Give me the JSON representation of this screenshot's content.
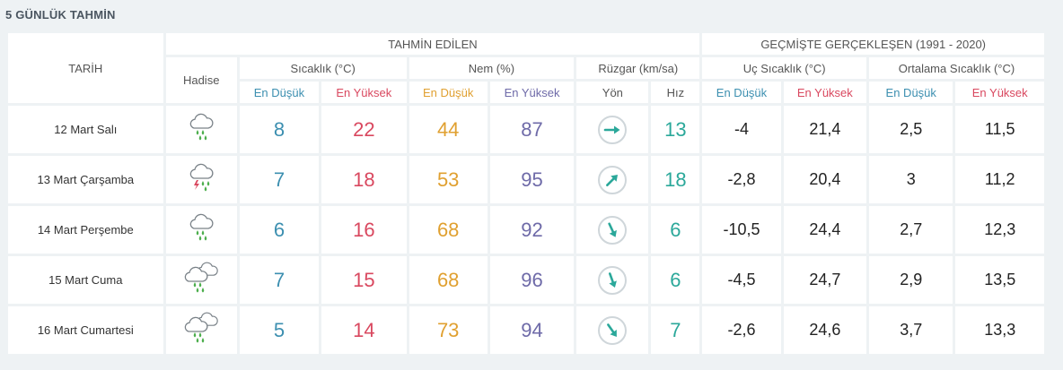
{
  "title": "5 GÜNLÜK TAHMİN",
  "headers": {
    "tarih": "TARİH",
    "tahmin": "TAHMİN EDİLEN",
    "gecmis": "GEÇMİŞTE GERÇEKLEŞEN (1991 - 2020)",
    "hadise": "Hadise",
    "sicaklik": "Sıcaklık (°C)",
    "nem": "Nem (%)",
    "ruzgar": "Rüzgar (km/sa)",
    "uc": "Uç Sıcaklık (°C)",
    "ortalama": "Ortalama Sıcaklık (°C)",
    "en_dusuk": "En Düşük",
    "en_yuksek": "En Yüksek",
    "yon": "Yön",
    "hiz": "Hız"
  },
  "colors": {
    "low": "#3c8fb0",
    "high": "#d9485f",
    "hum_low": "#e0a030",
    "hum_high": "#6e6aa8",
    "wind": "#2ba89a"
  },
  "rows": [
    {
      "date": "12 Mart Salı",
      "icon": "rain-cloud-icon",
      "t_low": "8",
      "t_high": "22",
      "h_low": "44",
      "h_high": "87",
      "wind_dir_deg": 90,
      "wind_speed": "13",
      "uc_low": "-4",
      "uc_high": "21,4",
      "ort_low": "2,5",
      "ort_high": "11,5"
    },
    {
      "date": "13 Mart Çarşamba",
      "icon": "thunderstorm-cloud-icon",
      "t_low": "7",
      "t_high": "18",
      "h_low": "53",
      "h_high": "95",
      "wind_dir_deg": 45,
      "wind_speed": "18",
      "uc_low": "-2,8",
      "uc_high": "20,4",
      "ort_low": "3",
      "ort_high": "11,2"
    },
    {
      "date": "14 Mart Perşembe",
      "icon": "rain-cloud-icon",
      "t_low": "6",
      "t_high": "16",
      "h_low": "68",
      "h_high": "92",
      "wind_dir_deg": 155,
      "wind_speed": "6",
      "uc_low": "-10,5",
      "uc_high": "24,4",
      "ort_low": "2,7",
      "ort_high": "12,3"
    },
    {
      "date": "15 Mart Cuma",
      "icon": "cloudy-rain-icon",
      "t_low": "7",
      "t_high": "15",
      "h_low": "68",
      "h_high": "96",
      "wind_dir_deg": 160,
      "wind_speed": "6",
      "uc_low": "-4,5",
      "uc_high": "24,7",
      "ort_low": "2,9",
      "ort_high": "13,5"
    },
    {
      "date": "16 Mart Cumartesi",
      "icon": "cloudy-rain-icon",
      "t_low": "5",
      "t_high": "14",
      "h_low": "73",
      "h_high": "94",
      "wind_dir_deg": 145,
      "wind_speed": "7",
      "uc_low": "-2,6",
      "uc_high": "24,6",
      "ort_low": "3,7",
      "ort_high": "13,3"
    }
  ]
}
